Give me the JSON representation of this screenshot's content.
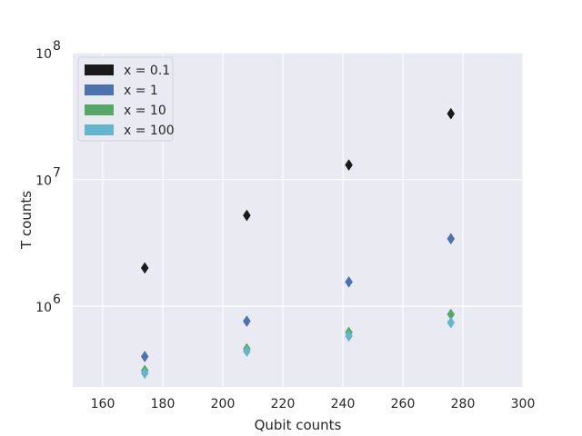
{
  "chart_data": {
    "type": "scatter",
    "xlabel": "Qubit counts",
    "ylabel": "T counts",
    "xlim": [
      150,
      300
    ],
    "ylim": [
      230000,
      100000000
    ],
    "yscale": "log",
    "xticks": [
      160,
      180,
      200,
      220,
      240,
      260,
      280,
      300
    ],
    "xtick_labels": [
      "160",
      "180",
      "200",
      "220",
      "240",
      "260",
      "280",
      "300"
    ],
    "yticks": [
      {
        "value": 1000000,
        "base": "10",
        "exp": "6"
      },
      {
        "value": 10000000,
        "base": "10",
        "exp": "7"
      },
      {
        "value": 100000000,
        "base": "10",
        "exp": "8"
      }
    ],
    "grid": true,
    "legend_position": "top-left",
    "marker": "diamond",
    "series": [
      {
        "name": "x = 0.1",
        "color": "#1a1a1a",
        "points": [
          [
            174,
            2000000
          ],
          [
            208,
            5200000
          ],
          [
            242,
            13000000
          ],
          [
            276,
            33000000
          ]
        ]
      },
      {
        "name": "x = 1",
        "color": "#4c72b0",
        "points": [
          [
            174,
            400000
          ],
          [
            208,
            760000
          ],
          [
            242,
            1550000
          ],
          [
            276,
            3400000
          ]
        ]
      },
      {
        "name": "x = 10",
        "color": "#55a868",
        "points": [
          [
            174,
            310000
          ],
          [
            208,
            460000
          ],
          [
            242,
            620000
          ],
          [
            276,
            860000
          ]
        ]
      },
      {
        "name": "x = 100",
        "color": "#64b5cd",
        "points": [
          [
            174,
            295000
          ],
          [
            208,
            440000
          ],
          [
            242,
            580000
          ],
          [
            276,
            740000
          ]
        ]
      }
    ]
  }
}
